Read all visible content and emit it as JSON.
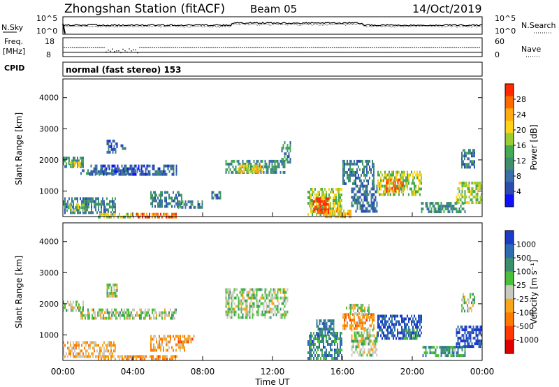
{
  "header": {
    "station": "Zhongshan Station (fitACF)",
    "beam": "Beam 05",
    "date": "14/Oct/2019"
  },
  "summary_panels": {
    "nsky_label": "N.Sky",
    "nsky_ticks": [
      "10^5",
      "10^0"
    ],
    "nsearch_label": "N.Search",
    "nsearch_ticks": [
      "10^5",
      "10^0"
    ],
    "freq_label": "Freq.",
    "freq_unit": "[MHz]",
    "freq_ticks": [
      "18",
      "8"
    ],
    "nave_label": "Nave",
    "nave_ticks": [
      "60",
      "0"
    ],
    "cpid_label": "CPID",
    "cpid_text": "normal (fast stereo) 153"
  },
  "chart_data": [
    {
      "type": "heatmap",
      "name": "power",
      "ylabel": "Slant Range [km]",
      "ylim": [
        180,
        4600
      ],
      "yticks": [
        1000,
        2000,
        3000,
        4000
      ],
      "xlim": [
        0,
        24
      ],
      "colorbar": {
        "label": "Power [dB]",
        "ticks": [
          "4",
          "8",
          "12",
          "16",
          "20",
          "24",
          "28"
        ],
        "colors": [
          "#1010ff",
          "#2c4cb0",
          "#3a6fa8",
          "#3f8f6a",
          "#44aa55",
          "#9bcc33",
          "#ffd21a",
          "#ffaa10",
          "#ff6a00",
          "#ff2a00"
        ]
      },
      "regions": [
        {
          "t": [
            0.0,
            1.2
          ],
          "r": [
            1750,
            2100
          ],
          "level": 0.35
        },
        {
          "t": [
            0.3,
            1.0
          ],
          "r": [
            1850,
            1950
          ],
          "level": 0.6
        },
        {
          "t": [
            1.0,
            4.5
          ],
          "r": [
            1600,
            1700
          ],
          "level": 0.3
        },
        {
          "t": [
            1.5,
            6.5
          ],
          "r": [
            1550,
            1850
          ],
          "level": 0.2
        },
        {
          "t": [
            2.5,
            3.1
          ],
          "r": [
            2250,
            2650
          ],
          "level": 0.2
        },
        {
          "t": [
            3.3,
            3.6
          ],
          "r": [
            2350,
            2500
          ],
          "level": 0.25
        },
        {
          "t": [
            0.0,
            3.0
          ],
          "r": [
            350,
            800
          ],
          "level": 0.3
        },
        {
          "t": [
            0.2,
            1.2
          ],
          "r": [
            400,
            600
          ],
          "level": 0.55
        },
        {
          "t": [
            2.0,
            4.2
          ],
          "r": [
            200,
            300
          ],
          "level": 0.6
        },
        {
          "t": [
            4.2,
            6.5
          ],
          "r": [
            200,
            300
          ],
          "level": 0.9
        },
        {
          "t": [
            5.0,
            6.8
          ],
          "r": [
            500,
            1000
          ],
          "level": 0.3
        },
        {
          "t": [
            6.5,
            8.0
          ],
          "r": [
            500,
            700
          ],
          "level": 0.3
        },
        {
          "t": [
            9.3,
            12.7
          ],
          "r": [
            1600,
            2000
          ],
          "level": 0.35
        },
        {
          "t": [
            10.0,
            11.5
          ],
          "r": [
            1650,
            1850
          ],
          "level": 0.65
        },
        {
          "t": [
            12.5,
            13.0
          ],
          "r": [
            1900,
            2600
          ],
          "level": 0.3
        },
        {
          "t": [
            8.5,
            9.0
          ],
          "r": [
            800,
            1000
          ],
          "level": 0.25
        },
        {
          "t": [
            14.0,
            16.0
          ],
          "r": [
            250,
            1100
          ],
          "level": 0.55
        },
        {
          "t": [
            14.3,
            15.2
          ],
          "r": [
            350,
            800
          ],
          "level": 0.95
        },
        {
          "t": [
            15.0,
            16.5
          ],
          "r": [
            200,
            400
          ],
          "level": 0.7
        },
        {
          "t": [
            16.0,
            17.8
          ],
          "r": [
            1200,
            2000
          ],
          "level": 0.3
        },
        {
          "t": [
            16.5,
            18.0
          ],
          "r": [
            350,
            1200
          ],
          "level": 0.25
        },
        {
          "t": [
            18.0,
            20.5
          ],
          "r": [
            900,
            1650
          ],
          "level": 0.55
        },
        {
          "t": [
            18.5,
            19.5
          ],
          "r": [
            1000,
            1400
          ],
          "level": 0.85
        },
        {
          "t": [
            20.5,
            23.0
          ],
          "r": [
            350,
            650
          ],
          "level": 0.35
        },
        {
          "t": [
            22.5,
            24.0
          ],
          "r": [
            600,
            1300
          ],
          "level": 0.55
        },
        {
          "t": [
            22.8,
            23.6
          ],
          "r": [
            1800,
            2350
          ],
          "level": 0.3
        }
      ]
    },
    {
      "type": "heatmap",
      "name": "velocity",
      "ylabel": "Slant Range [km]",
      "xlabel": "Time UT",
      "ylim": [
        180,
        4600
      ],
      "yticks": [
        1000,
        2000,
        3000,
        4000
      ],
      "xlim": [
        0,
        24
      ],
      "xticks": [
        "00:00",
        "04:00",
        "08:00",
        "12:00",
        "16:00",
        "20:00",
        "00:00"
      ],
      "colorbar": {
        "label": "Velocity [m s⁻¹]",
        "ticks": [
          "1000",
          "500",
          "100",
          "25",
          "-25",
          "-100",
          "-500",
          "-1000"
        ],
        "colors": [
          "#1c3cc8",
          "#2f6bb0",
          "#3b8f6e",
          "#4cbf3a",
          "#c9c9c0",
          "#f7a51a",
          "#ff7a00",
          "#ff3a00",
          "#e00000"
        ]
      },
      "regions": [
        {
          "t": [
            0.0,
            1.2
          ],
          "r": [
            1750,
            2100
          ],
          "level": 0.45
        },
        {
          "t": [
            1.0,
            6.5
          ],
          "r": [
            1550,
            1850
          ],
          "level": 0.45
        },
        {
          "t": [
            2.5,
            3.1
          ],
          "r": [
            2250,
            2650
          ],
          "level": 0.45
        },
        {
          "t": [
            0.0,
            3.0
          ],
          "r": [
            350,
            800
          ],
          "level": 0.6
        },
        {
          "t": [
            2.0,
            6.5
          ],
          "r": [
            200,
            350
          ],
          "level": 0.65
        },
        {
          "t": [
            5.0,
            7.0
          ],
          "r": [
            500,
            1000
          ],
          "level": 0.62
        },
        {
          "t": [
            6.5,
            7.5
          ],
          "r": [
            750,
            1000
          ],
          "level": 0.7
        },
        {
          "t": [
            9.3,
            12.9
          ],
          "r": [
            1600,
            2500
          ],
          "level": 0.45
        },
        {
          "t": [
            14.0,
            16.0
          ],
          "r": [
            250,
            1100
          ],
          "level": 0.25
        },
        {
          "t": [
            14.5,
            15.5
          ],
          "r": [
            1000,
            1500
          ],
          "level": 0.2
        },
        {
          "t": [
            16.0,
            17.8
          ],
          "r": [
            1200,
            1700
          ],
          "level": 0.65
        },
        {
          "t": [
            16.2,
            17.5
          ],
          "r": [
            1700,
            2000
          ],
          "level": 0.45
        },
        {
          "t": [
            16.5,
            18.0
          ],
          "r": [
            350,
            1200
          ],
          "level": 0.45
        },
        {
          "t": [
            18.0,
            20.5
          ],
          "r": [
            900,
            1650
          ],
          "level": 0.1
        },
        {
          "t": [
            19.5,
            20.3
          ],
          "r": [
            900,
            1200
          ],
          "level": 0.3
        },
        {
          "t": [
            20.5,
            23.0
          ],
          "r": [
            350,
            650
          ],
          "level": 0.3
        },
        {
          "t": [
            22.5,
            24.0
          ],
          "r": [
            600,
            1300
          ],
          "level": 0.05
        },
        {
          "t": [
            22.8,
            23.6
          ],
          "r": [
            1800,
            2350
          ],
          "level": 0.45
        }
      ]
    }
  ]
}
